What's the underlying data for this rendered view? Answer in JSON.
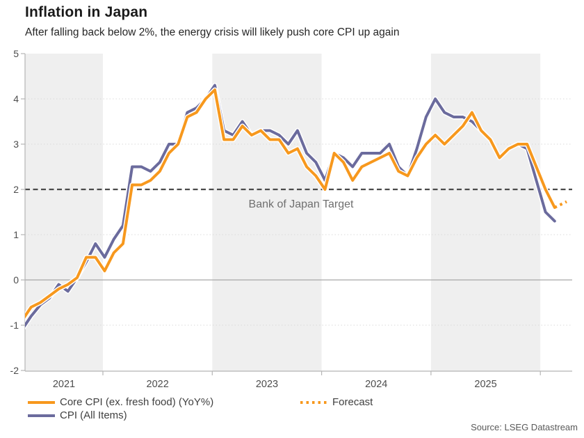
{
  "header": {
    "title": "Inflation in Japan",
    "subtitle": "After falling back below 2%, the energy crisis will likely push core CPI up again"
  },
  "source": "Source: LSEG Datastream",
  "legend": {
    "core_label": "Core CPI (ex. fresh food) (YoY%)",
    "all_items_label": "CPI (All Items)",
    "forecast_label": "Forecast"
  },
  "colors": {
    "core": "#F7981D",
    "all_items": "#6B6B9D",
    "band": "#EFEFEF",
    "grid_dotted": "#D9D9D9",
    "zero_line": "#A8A8A8",
    "axis": "#B5B5B5",
    "target_line": "#4A4A4A",
    "tick_label": "#4D4D4D",
    "annotation": "#6F6F6F",
    "line_casing": "#FFFFFF"
  },
  "chart_data": {
    "type": "line",
    "title": "Inflation in Japan",
    "x_start": "2021-04",
    "x_freq": "monthly",
    "ylim": [
      -2,
      5
    ],
    "y_ticks": [
      5,
      4,
      3,
      2,
      1,
      0,
      -1,
      -2
    ],
    "grid": "dotted-horizontal",
    "legend_position": "bottom",
    "target_line": {
      "value": 2,
      "label": "Bank of Japan Target"
    },
    "years": [
      {
        "label": "2021",
        "shaded": true
      },
      {
        "label": "2022",
        "shaded": false
      },
      {
        "label": "2023",
        "shaded": true
      },
      {
        "label": "2024",
        "shaded": false
      },
      {
        "label": "2025",
        "shaded": true
      },
      {
        "label": "",
        "shaded": false
      }
    ],
    "series": [
      {
        "name": "CPI (All Items)",
        "color": "#6B6B9D",
        "values": [
          -1.1,
          -0.8,
          -0.55,
          -0.4,
          -0.1,
          -0.25,
          0.05,
          0.4,
          0.8,
          0.5,
          0.9,
          1.2,
          2.5,
          2.5,
          2.4,
          2.6,
          3.0,
          3.0,
          3.7,
          3.8,
          4.0,
          4.3,
          3.3,
          3.2,
          3.5,
          3.2,
          3.3,
          3.3,
          3.2,
          3.0,
          3.3,
          2.8,
          2.6,
          2.2,
          2.8,
          2.7,
          2.5,
          2.8,
          2.8,
          2.8,
          3.0,
          2.5,
          2.3,
          2.9,
          3.6,
          4.0,
          3.7,
          3.6,
          3.6,
          3.5,
          3.3,
          3.1,
          2.7,
          2.9,
          3.0,
          2.9,
          2.2,
          1.5,
          1.3
        ]
      },
      {
        "name": "Core CPI (ex. fresh food) (YoY%)",
        "color": "#F7981D",
        "values": [
          -0.9,
          -0.6,
          -0.5,
          -0.35,
          -0.2,
          -0.1,
          0.05,
          0.5,
          0.5,
          0.2,
          0.6,
          0.8,
          2.1,
          2.1,
          2.2,
          2.4,
          2.8,
          3.0,
          3.6,
          3.7,
          4.0,
          4.2,
          3.1,
          3.1,
          3.4,
          3.2,
          3.3,
          3.1,
          3.1,
          2.8,
          2.9,
          2.5,
          2.3,
          2.0,
          2.8,
          2.6,
          2.2,
          2.5,
          2.6,
          2.7,
          2.8,
          2.4,
          2.3,
          2.7,
          3.0,
          3.2,
          3.0,
          3.2,
          3.4,
          3.7,
          3.3,
          3.1,
          2.7,
          2.9,
          3.0,
          3.0,
          2.5,
          2.0,
          1.6
        ]
      }
    ],
    "forecast": {
      "name": "Forecast",
      "color": "#F7981D",
      "style": "dotted",
      "x": [
        58,
        59.3
      ],
      "values": [
        1.6,
        1.73
      ]
    }
  }
}
